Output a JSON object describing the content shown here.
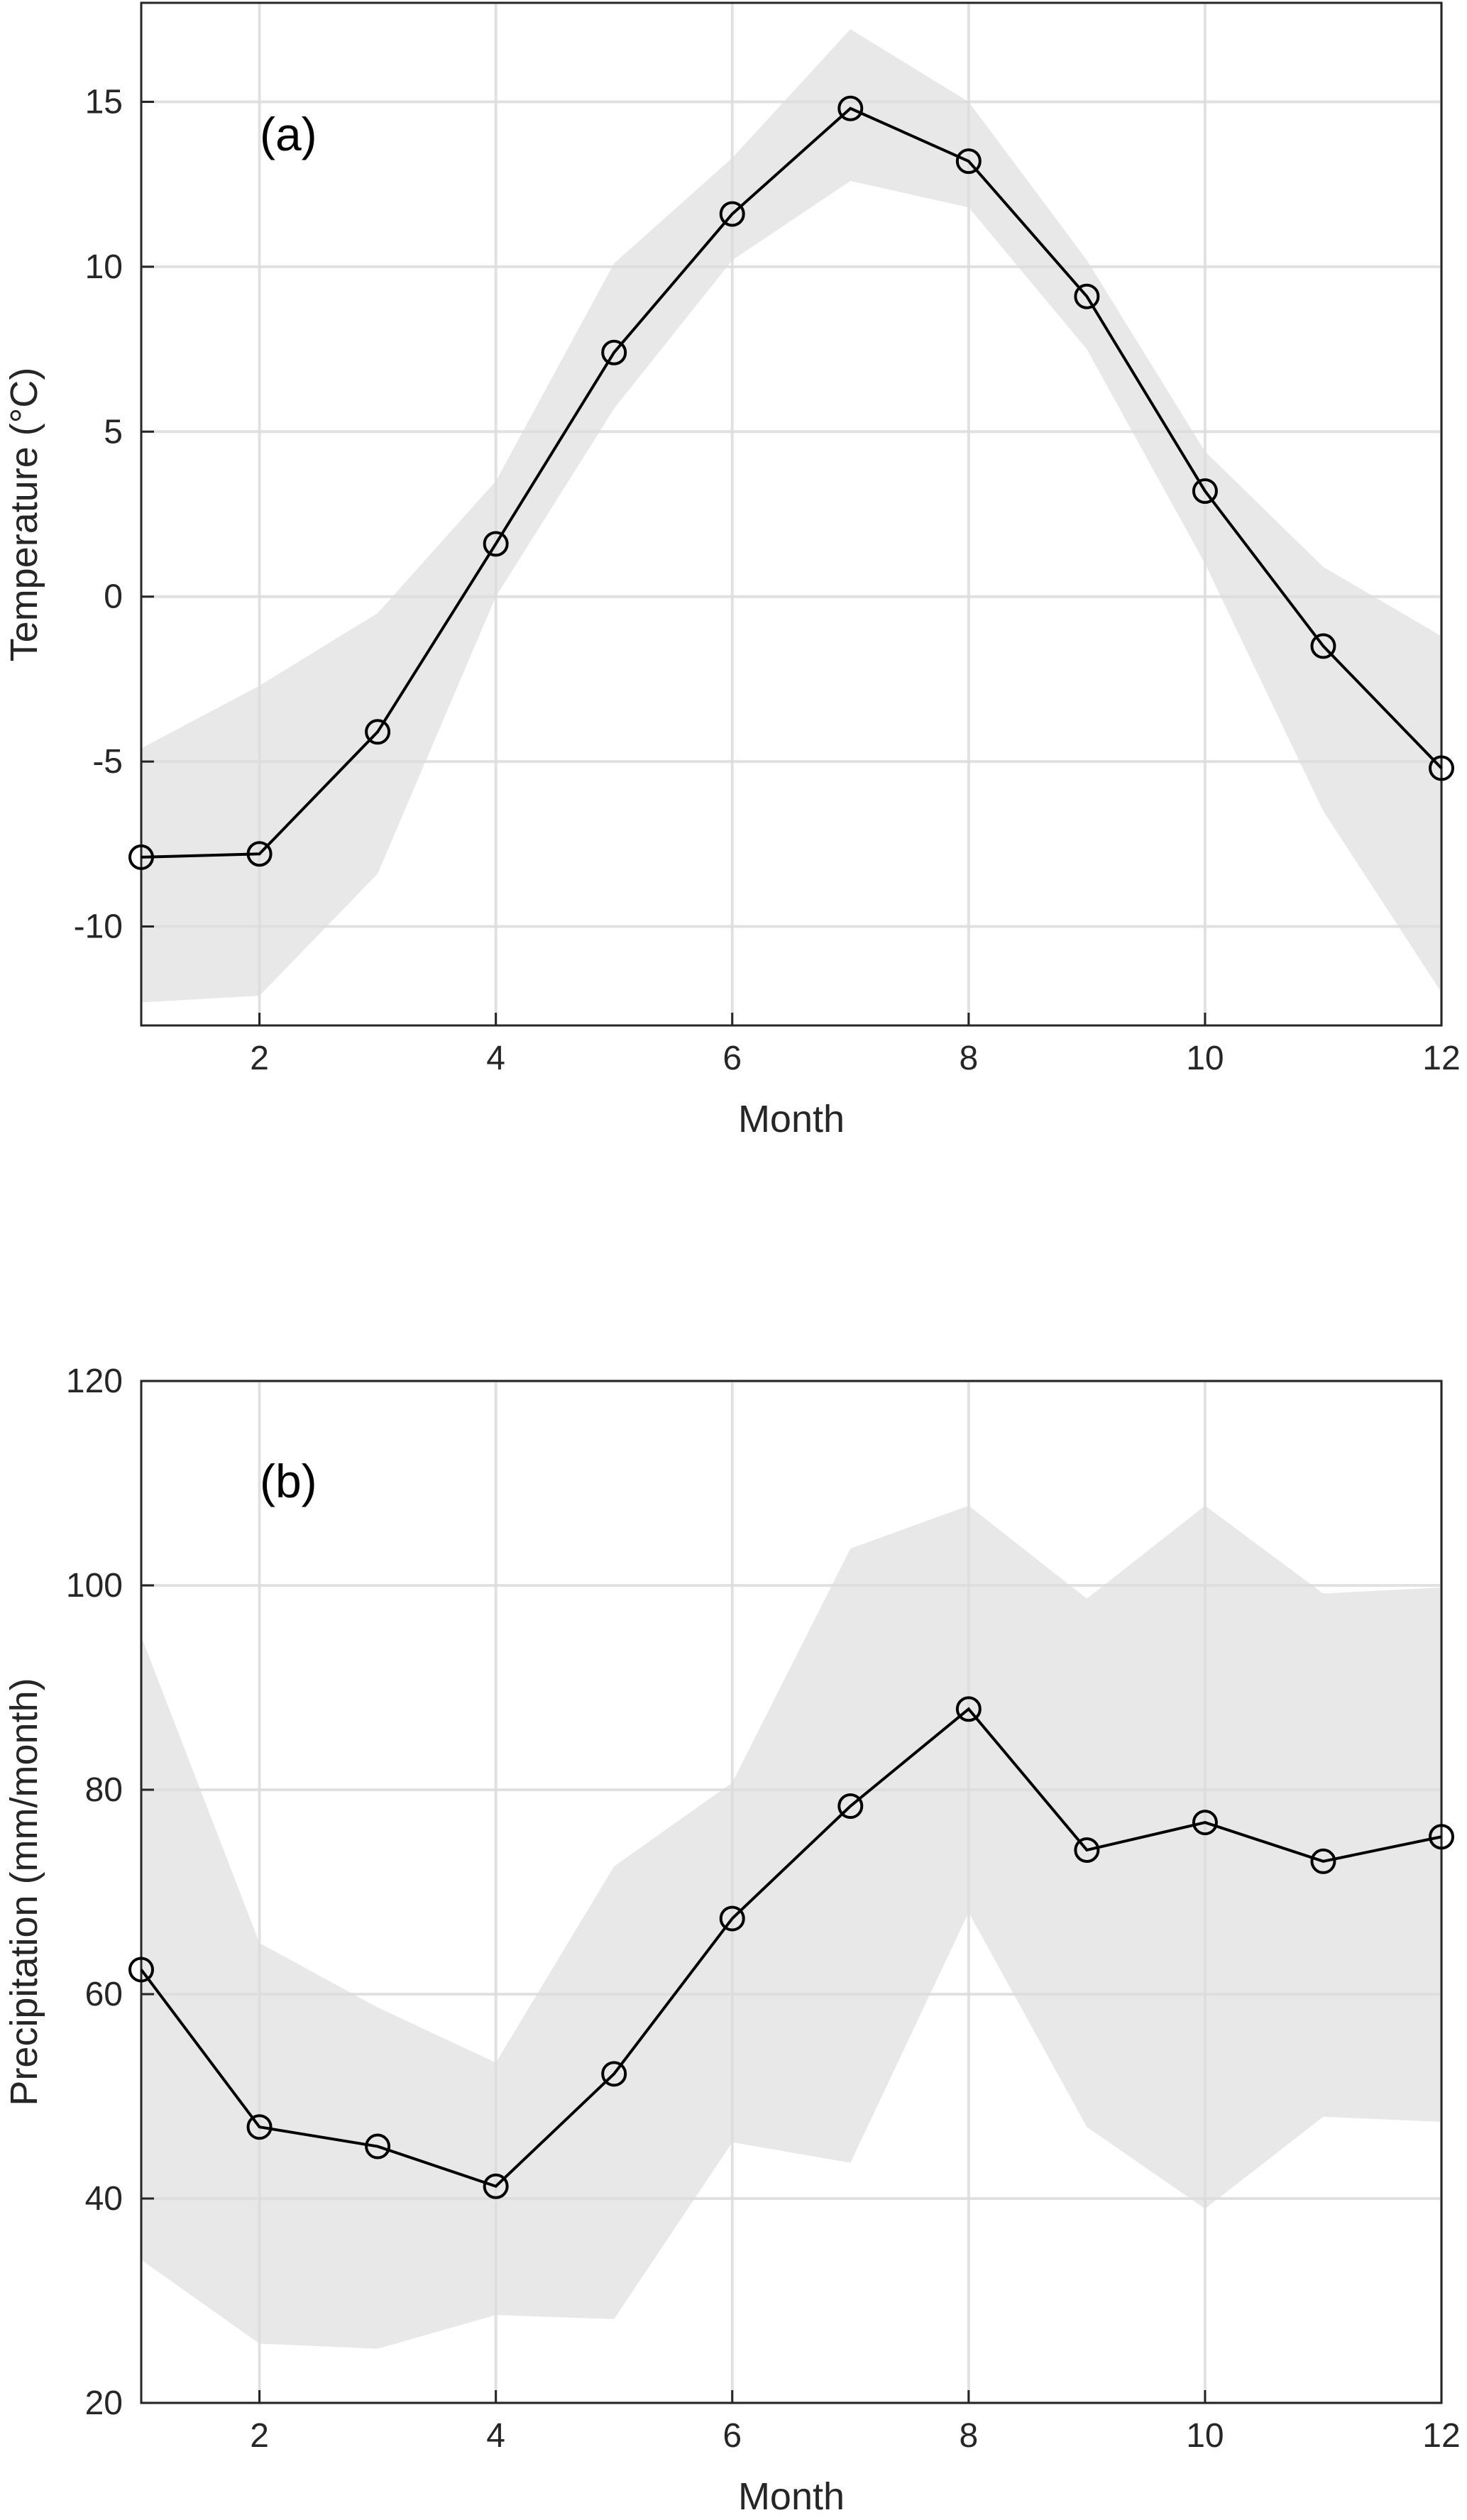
{
  "chart_data": [
    {
      "type": "line",
      "panel_label": "(a)",
      "title": "",
      "xlabel": "Month",
      "ylabel": "Temperature (°C)",
      "xlim": [
        1,
        12
      ],
      "ylim": [
        -13,
        18
      ],
      "xticks": [
        2,
        4,
        6,
        8,
        10,
        12
      ],
      "yticks": [
        -10,
        -5,
        0,
        5,
        10,
        15
      ],
      "grid": true,
      "x": [
        1,
        2,
        3,
        4,
        5,
        6,
        7,
        8,
        9,
        10,
        11,
        12
      ],
      "series": [
        {
          "name": "mean",
          "values": [
            -7.9,
            -7.8,
            -4.1,
            1.6,
            7.4,
            11.6,
            14.8,
            13.2,
            9.1,
            3.2,
            -1.5,
            -5.2
          ]
        },
        {
          "name": "band_upper",
          "values": [
            -4.6,
            -2.7,
            -0.5,
            3.5,
            10.1,
            13.3,
            17.2,
            15.0,
            10.2,
            4.4,
            0.9,
            -1.2
          ]
        },
        {
          "name": "band_lower",
          "values": [
            -12.3,
            -12.1,
            -8.4,
            0.0,
            5.7,
            10.2,
            12.6,
            11.8,
            7.5,
            1.0,
            -6.5,
            -12.0
          ]
        }
      ],
      "colors": {
        "line": "#000000",
        "band": "#e8e8e8",
        "grid": "#dcdcdc"
      }
    },
    {
      "type": "line",
      "panel_label": "(b)",
      "title": "",
      "xlabel": "Month",
      "ylabel": "Precipitation (mm/month)",
      "xlim": [
        1,
        12
      ],
      "ylim": [
        20,
        120
      ],
      "xticks": [
        2,
        4,
        6,
        8,
        10,
        12
      ],
      "yticks": [
        20,
        40,
        60,
        80,
        100,
        120
      ],
      "grid": true,
      "x": [
        1,
        2,
        3,
        4,
        5,
        6,
        7,
        8,
        9,
        10,
        11,
        12
      ],
      "series": [
        {
          "name": "mean",
          "values": [
            62.4,
            47.0,
            45.1,
            41.2,
            52.2,
            67.4,
            78.4,
            87.9,
            74.1,
            76.8,
            73.0,
            75.4
          ]
        },
        {
          "name": "band_upper",
          "values": [
            95.0,
            65.0,
            58.7,
            53.3,
            72.5,
            80.7,
            103.6,
            107.8,
            98.7,
            107.8,
            99.2,
            99.8
          ]
        },
        {
          "name": "band_lower",
          "values": [
            34.0,
            25.8,
            25.3,
            28.6,
            28.2,
            45.5,
            43.5,
            68.0,
            47.0,
            39.0,
            48.0,
            47.5
          ]
        }
      ],
      "colors": {
        "line": "#000000",
        "band": "#e8e8e8",
        "grid": "#dcdcdc"
      }
    }
  ]
}
